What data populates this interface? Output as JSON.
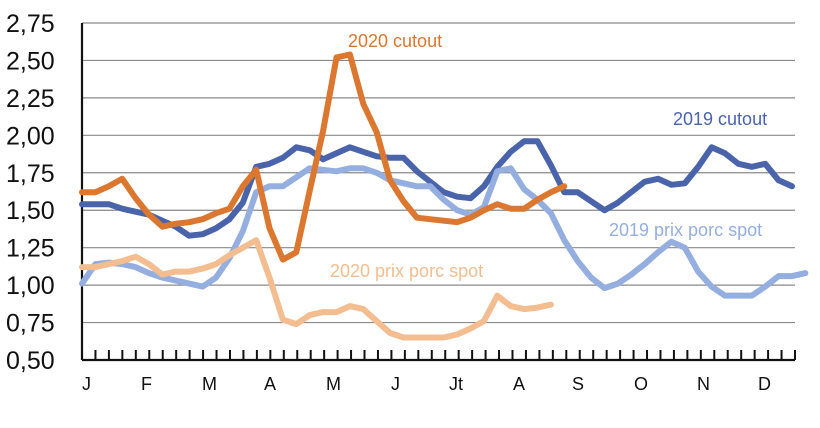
{
  "chart_data": {
    "type": "line",
    "title": "",
    "xlabel": "",
    "ylabel": "",
    "ylim": [
      0.5,
      2.75
    ],
    "yticks": [
      "0,50",
      "0,75",
      "1,00",
      "1,25",
      "1,50",
      "1,75",
      "2,00",
      "2,25",
      "2,50",
      "2,75"
    ],
    "xtick_labels": [
      "J",
      "F",
      "M",
      "A",
      "M",
      "J",
      "Jt",
      "A",
      "S",
      "O",
      "N",
      "D"
    ],
    "grid": "horizontal",
    "legend": "inline labels",
    "x_weeks": 52,
    "series": [
      {
        "name": "2019 cutout",
        "color": "#4a64ac",
        "values": [
          1.54,
          1.54,
          1.54,
          1.51,
          1.49,
          1.47,
          1.43,
          1.39,
          1.33,
          1.34,
          1.38,
          1.44,
          1.55,
          1.79,
          1.81,
          1.85,
          1.92,
          1.9,
          1.84,
          1.88,
          1.92,
          1.89,
          1.86,
          1.85,
          1.85,
          1.76,
          1.69,
          1.62,
          1.59,
          1.58,
          1.66,
          1.79,
          1.89,
          1.96,
          1.96,
          1.8,
          1.62,
          1.62,
          1.56,
          1.5,
          1.55,
          1.62,
          1.69,
          1.71,
          1.67,
          1.68,
          1.79,
          1.92,
          1.88,
          1.81,
          1.79,
          1.81,
          1.7,
          1.66
        ]
      },
      {
        "name": "2019 prix porc spot",
        "color": "#95aee0",
        "values": [
          1.01,
          1.14,
          1.15,
          1.14,
          1.12,
          1.08,
          1.05,
          1.03,
          1.01,
          0.99,
          1.05,
          1.18,
          1.36,
          1.62,
          1.66,
          1.66,
          1.72,
          1.78,
          1.77,
          1.76,
          1.78,
          1.78,
          1.75,
          1.7,
          1.68,
          1.66,
          1.66,
          1.57,
          1.5,
          1.47,
          1.52,
          1.76,
          1.78,
          1.64,
          1.57,
          1.48,
          1.3,
          1.16,
          1.05,
          0.98,
          1.01,
          1.07,
          1.14,
          1.22,
          1.29,
          1.25,
          1.09,
          0.99,
          0.93,
          0.93,
          0.93,
          0.99,
          1.06,
          1.06,
          1.08
        ]
      },
      {
        "name": "2020 cutout",
        "color": "#dc7730",
        "values": [
          1.62,
          1.62,
          1.66,
          1.71,
          1.58,
          1.47,
          1.39,
          1.41,
          1.42,
          1.44,
          1.48,
          1.51,
          1.66,
          1.77,
          1.38,
          1.17,
          1.22,
          1.63,
          2.03,
          2.52,
          2.54,
          2.21,
          2.02,
          1.7,
          1.56,
          1.45,
          1.44,
          1.43,
          1.42,
          1.45,
          1.5,
          1.54,
          1.51,
          1.51,
          1.57,
          1.62,
          1.66
        ]
      },
      {
        "name": "2020 prix porc spot",
        "color": "#f3bd90",
        "values": [
          1.12,
          1.12,
          1.14,
          1.16,
          1.19,
          1.14,
          1.07,
          1.09,
          1.09,
          1.11,
          1.14,
          1.2,
          1.25,
          1.3,
          1.05,
          0.77,
          0.74,
          0.8,
          0.82,
          0.82,
          0.86,
          0.84,
          0.76,
          0.68,
          0.65,
          0.65,
          0.65,
          0.65,
          0.67,
          0.71,
          0.76,
          0.93,
          0.86,
          0.84,
          0.85,
          0.87
        ]
      }
    ],
    "annotations": [
      {
        "text": "2020 cutout",
        "color": "#dc7730"
      },
      {
        "text": "2019 cutout",
        "color": "#4a64ac"
      },
      {
        "text": "2019 prix porc spot",
        "color": "#95aee0"
      },
      {
        "text": "2020 prix porc spot",
        "color": "#f3bd90"
      }
    ]
  },
  "labels": {
    "cutout_2020": "2020 cutout",
    "cutout_2019": "2019 cutout",
    "spot_2019": "2019 prix porc spot",
    "spot_2020": "2020 prix porc spot"
  }
}
